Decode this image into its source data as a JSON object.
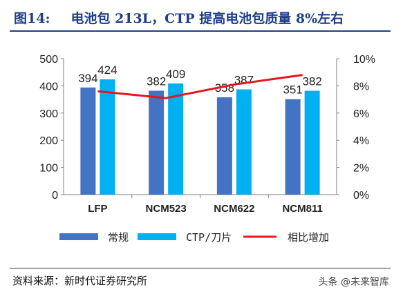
{
  "header": {
    "figure_label": "图14:",
    "title": "电池包 213L，CTP 提高电池包质量 8%左右"
  },
  "chart_data": {
    "type": "bar",
    "categories": [
      "LFP",
      "NCM523",
      "NCM622",
      "NCM811"
    ],
    "series": [
      {
        "name": "常规",
        "values": [
          394,
          382,
          358,
          351
        ],
        "color": "#4472c4"
      },
      {
        "name": "CTP/刀片",
        "values": [
          424,
          409,
          387,
          382
        ],
        "color": "#00b0f0"
      },
      {
        "name": "相比增加",
        "type": "line",
        "axis": "right",
        "values": [
          7.6,
          7.1,
          8.1,
          8.8
        ],
        "color": "#e8141e"
      }
    ],
    "y_left": {
      "ticks": [
        "0",
        "100",
        "200",
        "300",
        "400",
        "500"
      ],
      "range": [
        0,
        500
      ]
    },
    "y_right": {
      "ticks": [
        "0%",
        "2%",
        "4%",
        "6%",
        "8%",
        "10%"
      ],
      "range": [
        0,
        10
      ]
    },
    "data_labels": [
      [
        "394",
        "424"
      ],
      [
        "382",
        "409"
      ],
      [
        "358",
        "387"
      ],
      [
        "351",
        "382"
      ]
    ],
    "legend_position": "bottom",
    "grid": false
  },
  "footer": {
    "source": "资料来源：新时代证券研究所",
    "watermark": "头条 @未来智库"
  }
}
